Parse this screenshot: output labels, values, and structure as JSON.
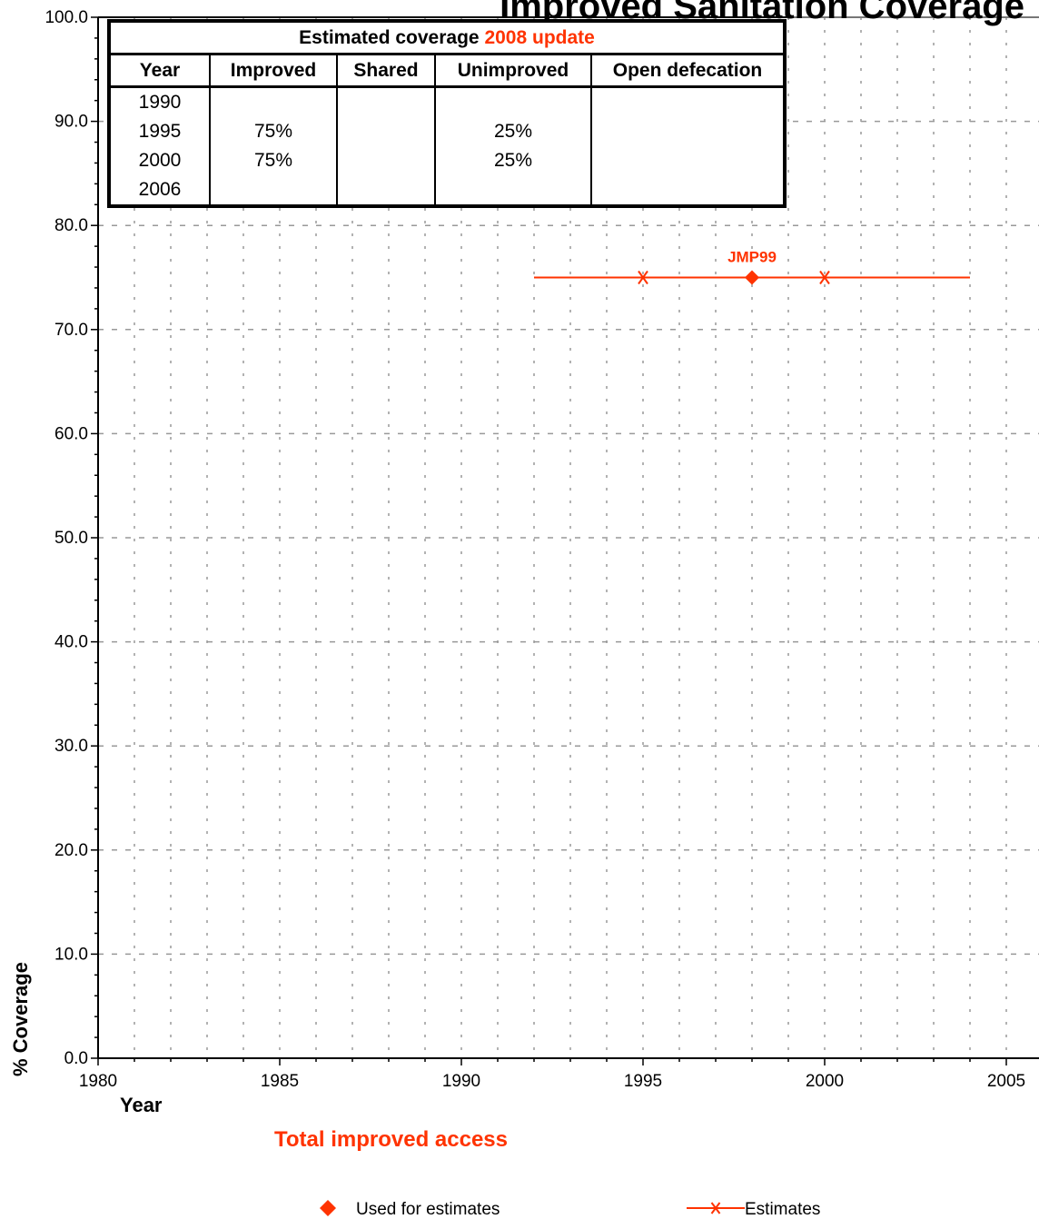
{
  "colors": {
    "accent": "#ff3300",
    "grid": "#999999",
    "axis": "#000000"
  },
  "chart_data": {
    "type": "line",
    "title": "Improved Sanitation Coverage",
    "xlabel": "Year",
    "ylabel": "% Coverage",
    "subtitle": "Total improved access",
    "xlim": [
      1980,
      2005
    ],
    "ylim": [
      0,
      100
    ],
    "xticks": [
      "1980",
      "1985",
      "1990",
      "1995",
      "2000",
      "2005"
    ],
    "yticks": [
      "0.0",
      "10.0",
      "20.0",
      "30.0",
      "40.0",
      "50.0",
      "60.0",
      "70.0",
      "80.0",
      "90.0",
      "100.0"
    ],
    "grid": true,
    "series": [
      {
        "name": "Estimates",
        "marker": "asterisk",
        "x": [
          1992,
          1995,
          2000,
          2004
        ],
        "y": [
          75,
          75,
          75,
          75
        ],
        "marked_x": [
          1995,
          2000
        ]
      },
      {
        "name": "Used for estimates",
        "marker": "diamond",
        "x": [
          1998
        ],
        "y": [
          75
        ],
        "labels": [
          "JMP99"
        ]
      }
    ]
  },
  "table": {
    "title_prefix": "Estimated coverage ",
    "title_highlight": "2008 update",
    "headers": [
      "Year",
      "Improved",
      "Shared",
      "Unimproved",
      "Open defecation"
    ],
    "rows": [
      [
        "1990",
        "",
        "",
        "",
        ""
      ],
      [
        "1995",
        "75%",
        "",
        "25%",
        ""
      ],
      [
        "2000",
        "75%",
        "",
        "25%",
        ""
      ],
      [
        "2006",
        "",
        "",
        "",
        ""
      ]
    ]
  },
  "legend": {
    "diamond_label": "Used for estimates",
    "line_label": "Estimates"
  }
}
